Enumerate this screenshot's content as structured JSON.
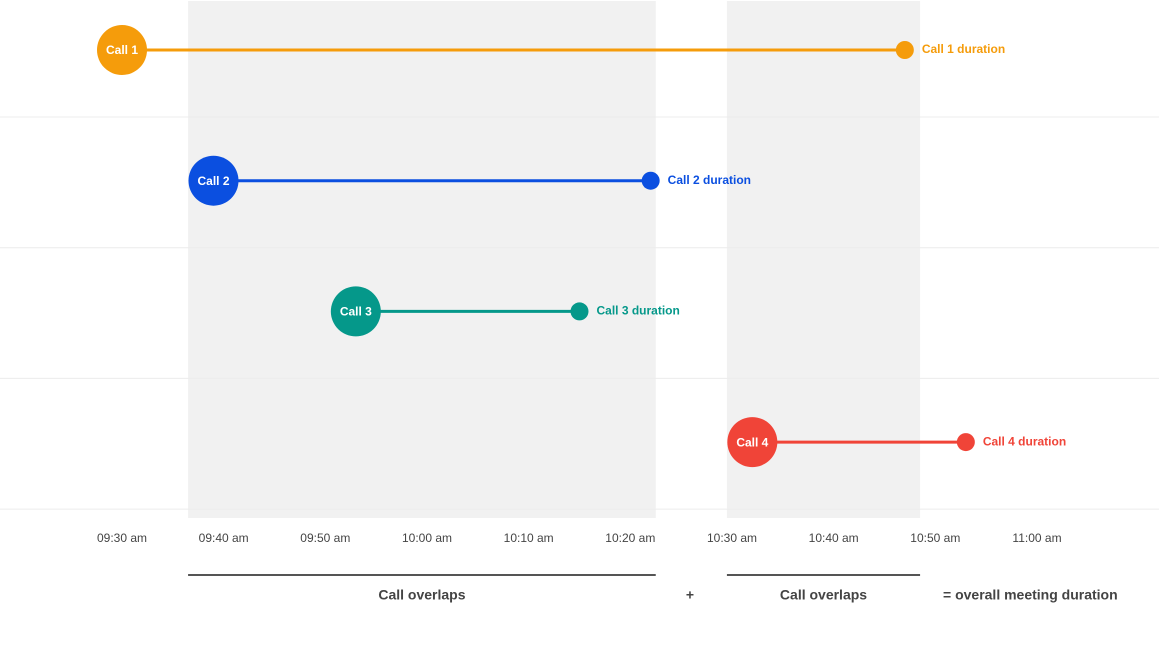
{
  "chart_data": {
    "type": "timeline",
    "xlim": [
      558,
      672
    ],
    "xticks": [
      {
        "value": 570,
        "label": "09:30 am"
      },
      {
        "value": 580,
        "label": "09:40 am"
      },
      {
        "value": 590,
        "label": "09:50 am"
      },
      {
        "value": 600,
        "label": "10:00 am"
      },
      {
        "value": 610,
        "label": "10:10 am"
      },
      {
        "value": 620,
        "label": "10:20 am"
      },
      {
        "value": 630,
        "label": "10:30 am"
      },
      {
        "value": 640,
        "label": "10:40 am"
      },
      {
        "value": 650,
        "label": "10:50 am"
      },
      {
        "value": 660,
        "label": "11:00 am"
      }
    ],
    "series": [
      {
        "name": "Call 1",
        "color": "#f59c0b",
        "start": 570,
        "end": 647,
        "end_label": "Call 1 duration"
      },
      {
        "name": "Call 2",
        "color": "#0b4fe0",
        "start": 579,
        "end": 622,
        "end_label": "Call 2 duration"
      },
      {
        "name": "Call 3",
        "color": "#05988a",
        "start": 593,
        "end": 615,
        "end_label": "Call 3 duration"
      },
      {
        "name": "Call 4",
        "color": "#f04438",
        "start": 632,
        "end": 653,
        "end_label": "Call 4 duration"
      }
    ],
    "overlaps": [
      {
        "start": 576.5,
        "end": 622.5,
        "label": "Call overlaps"
      },
      {
        "start": 629.5,
        "end": 648.5,
        "label": "Call overlaps"
      }
    ],
    "annotations": [
      "+",
      "= overall meeting duration"
    ]
  }
}
